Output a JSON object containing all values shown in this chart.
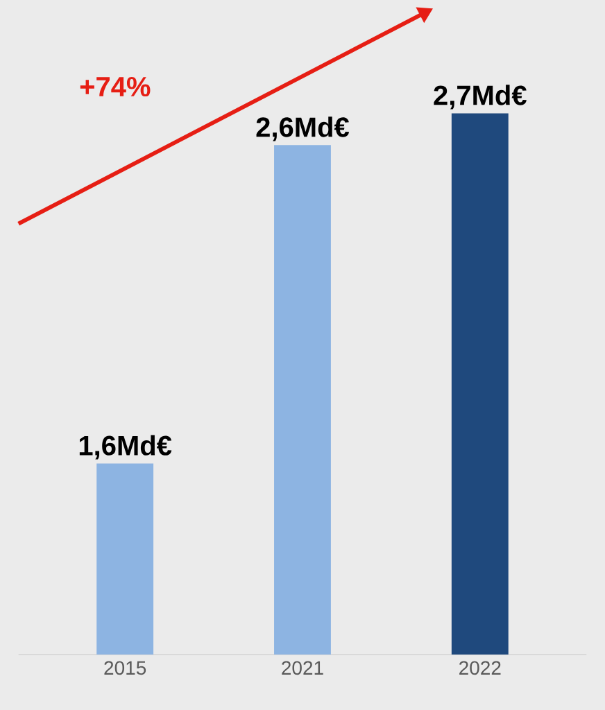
{
  "chart_data": {
    "type": "bar",
    "categories": [
      "2015",
      "2021",
      "2022"
    ],
    "values": [
      1.6,
      2.6,
      2.7
    ],
    "colors": [
      "#8db4e2",
      "#8db4e2",
      "#1f497d"
    ],
    "value_labels": [
      "1,6Md€",
      "2,6Md€",
      "2,7Md€"
    ],
    "ylim": [
      1,
      3.05
    ],
    "tick_labels": "x",
    "annotations": [
      "+74%"
    ]
  }
}
